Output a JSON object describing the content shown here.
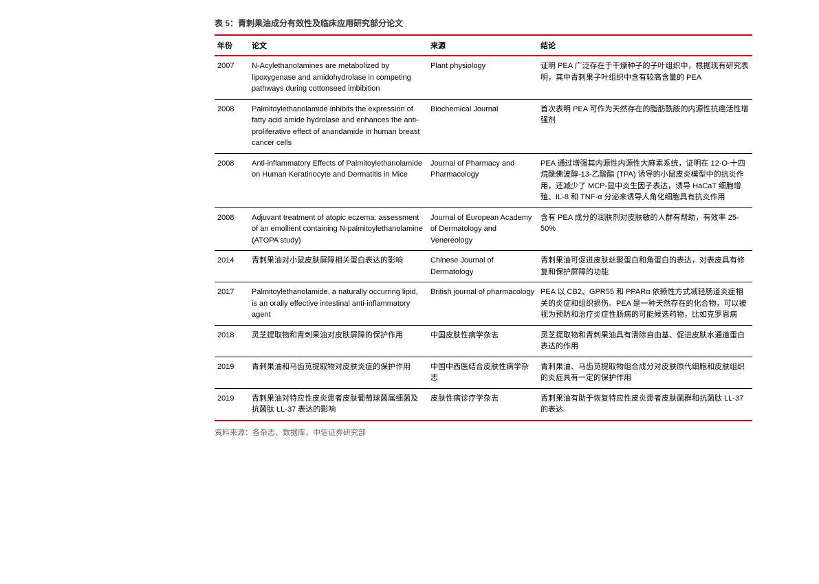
{
  "table": {
    "title": "表 5：青刺果油成分有效性及临床应用研究部分论文",
    "columns": [
      "年份",
      "论文",
      "来源",
      "结论"
    ],
    "rows": [
      {
        "year": "2007",
        "paper": "N-Acylethanolamines are metabolized by lipoxygenase and amidohydrolase in competing pathways during cottonseed imbibition",
        "source": "Plant physiology",
        "conclusion": "证明 PEA 广泛存在于干燥种子的子叶组织中，根据现有研究表明，其中青刺果子叶组织中含有较高含量的 PEA"
      },
      {
        "year": "2008",
        "paper": "Palmitoylethanolamide inhibits the expression of fatty acid amide hydrolase and enhances the anti-proliferative effect of anandamide in human breast cancer cells",
        "source": "Biochemical Journal",
        "conclusion": "首次表明 PEA 可作为天然存在的脂肪酰胺的内源性抗癌活性增强剂"
      },
      {
        "year": "2008",
        "paper": "Anti-inflammatory Effects of Palmitoylethanolamide on Human Keratinocyte and Dermatitis in Mice",
        "source": "Journal of Pharmacy and Pharmacology",
        "conclusion": "PEA 通过增强其内源性内源性大麻素系统，证明在 12-O-十四烷酰佛波醇-13-乙酸酯 (TPA) 诱导的小鼠皮炎模型中的抗炎作用，还减少了 MCP-鼠中炎生因子表达，诱导 HaCaT 细胞增殖、IL-8 和 TNF-α 分泌来诱导人角化细胞具有抗炎作用"
      },
      {
        "year": "2008",
        "paper": "Adjuvant treatment of atopic eczema: assessment of an emollient containing N-palmitoylethanolamine (ATOPA study)",
        "source": "Journal of European Academy of Dermatology and Venereology",
        "conclusion": "含有 PEA 成分的润肤剂对皮肤敏的人群有帮助，有效率 25-50%"
      },
      {
        "year": "2014",
        "paper": "青刺果油对小鼠皮肤屏障相关蛋白表达的影响",
        "source": "Chinese Journal of Dermatology",
        "conclusion": "青刺果油可促进皮肤丝聚蛋白和角蛋白的表达，对表皮具有修复和保护屏障的功能"
      },
      {
        "year": "2017",
        "paper": "Palmitoylethanolamide, a naturally occurring lipid, is an orally effective intestinal anti-inflammatory agent",
        "source": "British journal of pharmacology",
        "conclusion": "PEA 以 CB2、GPR55 和 PPARα 依赖性方式减轻肠道炎症相关的炎症和组织损伤。PEA 是一种天然存在的化合物，可以被视为预防和治疗炎症性肠病的可能候选药物，比如克罗恩病"
      },
      {
        "year": "2018",
        "paper": "灵芝提取物和青刺果油对皮肤屏障的保护作用",
        "source": "中国皮肤性病学杂志",
        "conclusion": "灵芝提取物和青刺果油具有清除自由基、促进皮肤水通道蛋白表达的作用"
      },
      {
        "year": "2019",
        "paper": "青刺果油和马齿苋提取物对皮肤炎症的保护作用",
        "source": "中国中西医结合皮肤性病学杂志",
        "conclusion": "青刺果油、马齿苋提取物组合成分对皮肤原代细胞和皮肤组织的炎症具有一定的保护作用"
      },
      {
        "year": "2019",
        "paper": "青刺果油对特应性皮炎患者皮肤葡萄球菌属细菌及抗菌肽 LL-37 表达的影响",
        "source": "皮肤性病诊疗学杂志",
        "conclusion": "青刺果油有助于恢复特应性皮炎患者皮肤菌群和抗菌肽 LL-37 的表达"
      }
    ],
    "source_note": "资料来源：各杂志、数据库，中信证券研究部"
  },
  "colors": {
    "accent": "#e60012",
    "row_border": "#000000",
    "text": "#000000",
    "muted": "#666666",
    "background": "#ffffff"
  }
}
